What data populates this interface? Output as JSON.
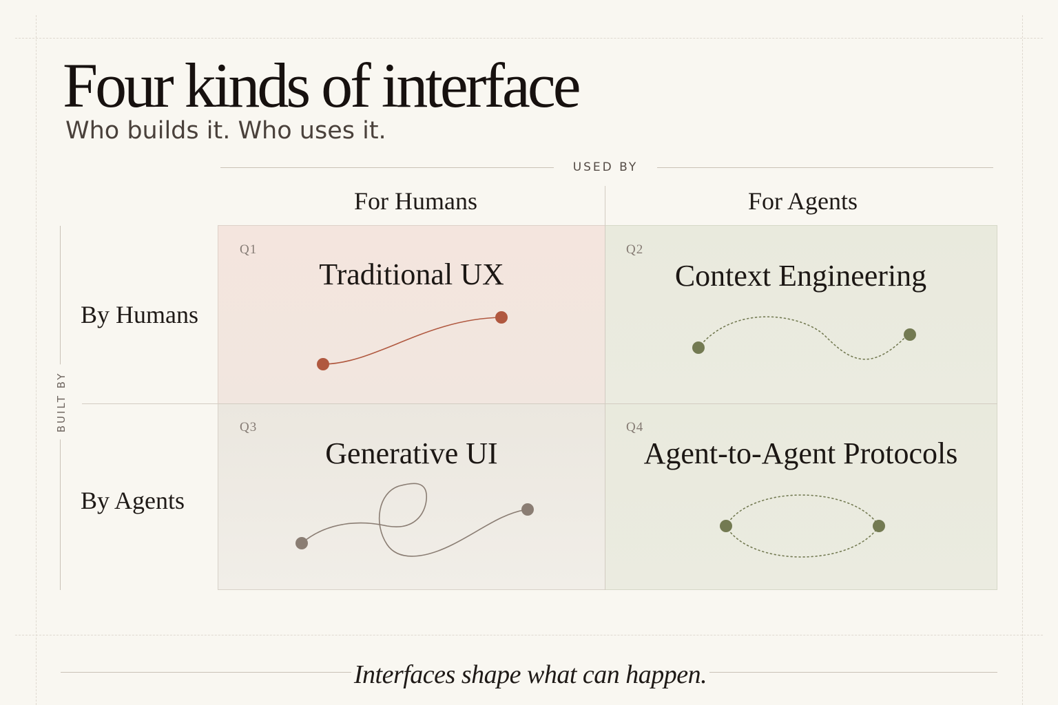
{
  "header": {
    "title": "Four kinds of interface",
    "subtitle": "Who builds it. Who uses it."
  },
  "axes": {
    "top_label": "USED BY",
    "left_label": "BUILT BY",
    "columns": [
      "For Humans",
      "For Agents"
    ],
    "rows": [
      "By Humans",
      "By Agents"
    ]
  },
  "quadrants": [
    {
      "tag": "Q1",
      "title": "Traditional UX",
      "glyph": "smooth-curve",
      "color": "#b0583f"
    },
    {
      "tag": "Q2",
      "title": "Context Engineering",
      "glyph": "dotted-wave",
      "color": "#737a52"
    },
    {
      "tag": "Q3",
      "title": "Generative UI",
      "glyph": "looped-curve",
      "color": "#8a7d73"
    },
    {
      "tag": "Q4",
      "title": "Agent-to-Agent Protocols",
      "glyph": "dotted-ellipse",
      "color": "#737a52"
    }
  ],
  "footer": {
    "tagline": "Interfaces shape what can happen."
  }
}
